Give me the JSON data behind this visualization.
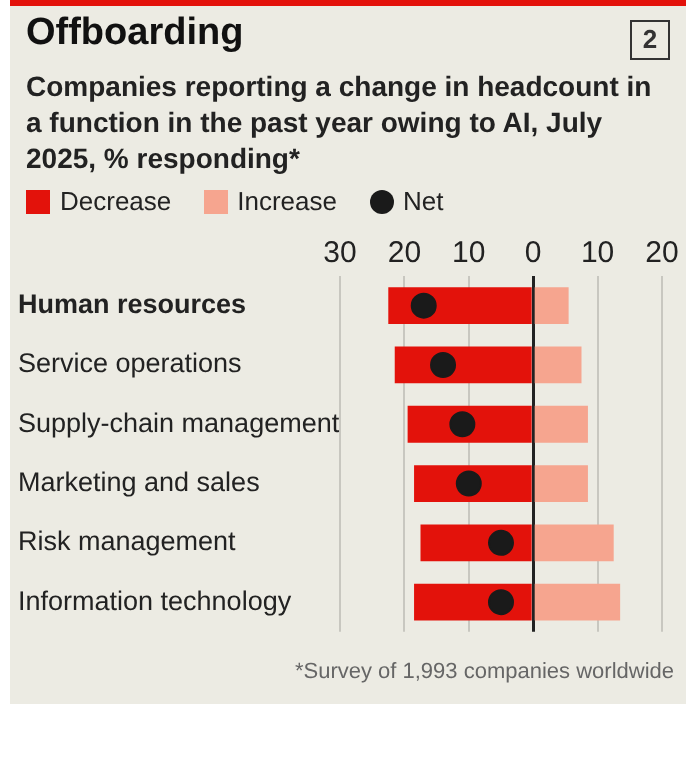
{
  "chart_data": {
    "type": "bar",
    "orientation": "horizontal",
    "stacked": true,
    "title": "Offboarding",
    "subtitle": "Companies reporting a change in headcount in a function in the past year owing to AI, July 2025, % responding*",
    "categories": [
      "Human resources",
      "Service operations",
      "Supply-chain management",
      "Marketing and sales",
      "Risk management",
      "Information technology"
    ],
    "series": [
      {
        "name": "Decrease",
        "color": "#e3120b",
        "values": [
          -22.5,
          -21.5,
          -19.5,
          -18.5,
          -17.5,
          -18.5
        ]
      },
      {
        "name": "Increase",
        "color": "#f6a58f",
        "values": [
          5.5,
          7.5,
          8.5,
          8.5,
          12.5,
          13.5
        ]
      },
      {
        "name": "Net",
        "type": "scatter",
        "color": "#1a1a1a",
        "values": [
          -17,
          -14,
          -11,
          -10,
          -5,
          -5
        ]
      }
    ],
    "xlim": [
      -30,
      20
    ],
    "xticks": [
      {
        "value": -30,
        "label": "30"
      },
      {
        "value": -20,
        "label": "20"
      },
      {
        "value": -10,
        "label": "10"
      },
      0,
      10,
      20
    ],
    "grid": "x",
    "legend": "top",
    "marker": "circle",
    "annotations": [
      "2",
      "*Survey of 1,993 companies worldwide"
    ]
  }
}
